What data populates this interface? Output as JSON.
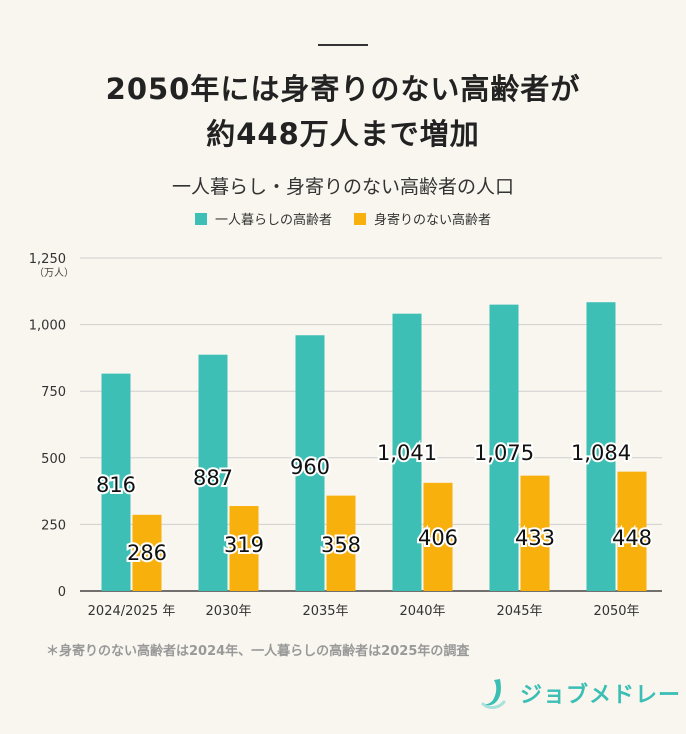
{
  "header": {
    "title_line1": "2050年には身寄りのない高齢者が",
    "title_line2": "約448万人まで増加"
  },
  "chart_data": {
    "type": "bar",
    "title": "一人暮らし・身寄りのない高齢者の人口",
    "categories": [
      "2024/2025 年",
      "2030年",
      "2035年",
      "2040年",
      "2045年",
      "2050年"
    ],
    "series": [
      {
        "name": "一人暮らしの高齢者",
        "color": "#3dbfb6",
        "values": [
          816,
          887,
          960,
          1041,
          1075,
          1084
        ],
        "labels": [
          "816",
          "887",
          "960",
          "1,041",
          "1,075",
          "1,084"
        ]
      },
      {
        "name": "身寄りのない高齢者",
        "color": "#f8b00c",
        "values": [
          286,
          319,
          358,
          406,
          433,
          448
        ],
        "labels": [
          "286",
          "319",
          "358",
          "406",
          "433",
          "448"
        ]
      }
    ],
    "yticks": [
      "0",
      "250",
      "500",
      "750",
      "1,000",
      "1,250"
    ],
    "ytick_values": [
      0,
      250,
      500,
      750,
      1000,
      1250
    ],
    "ylabel": "（万人）",
    "ylim": [
      0,
      1250
    ],
    "grid": true,
    "legend": "top-center"
  },
  "footnote": "＊身寄りのない高齢者は2024年、一人暮らしの高齢者は2025年の調査",
  "logo": {
    "text": "ジョブメドレー",
    "icon": "logo-mark-icon"
  }
}
